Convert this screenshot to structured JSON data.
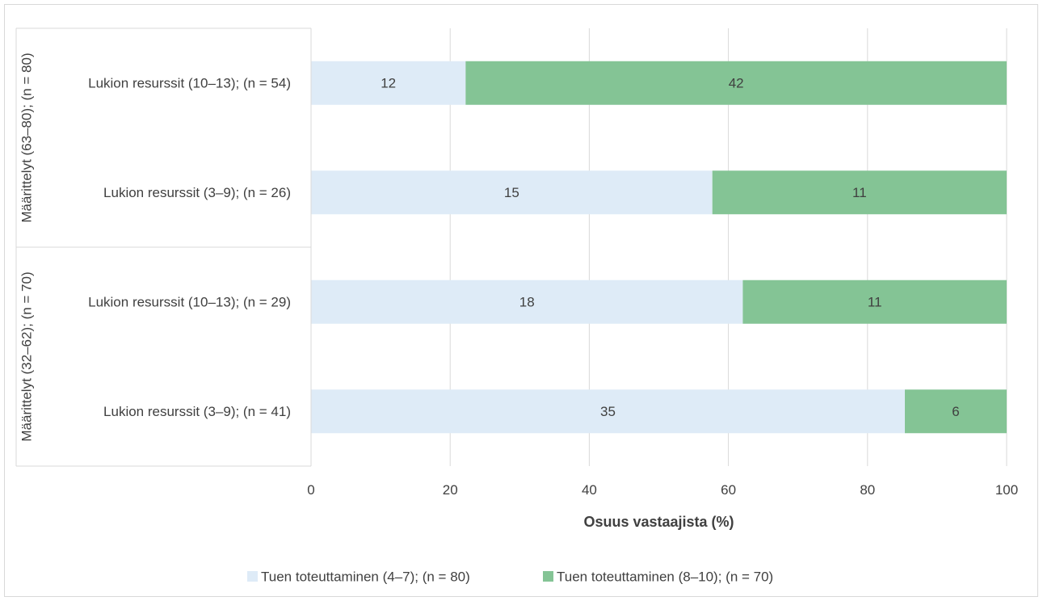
{
  "chart_data": {
    "type": "bar",
    "orientation": "horizontal",
    "stacked": "percent",
    "groups": [
      {
        "label": "Määrittelyt (63–80); (n = 80)",
        "categories": [
          0,
          1
        ]
      },
      {
        "label": "Määrittelyt (32–62); (n = 70)",
        "categories": [
          2,
          3
        ]
      }
    ],
    "categories": [
      "Lukion resurssit (10–13); (n = 54)",
      "Lukion resurssit (3–9); (n = 26)",
      "Lukion resurssit (10–13); (n = 29)",
      "Lukion resurssit (3–9); (n = 41)"
    ],
    "series": [
      {
        "name": "Tuen toteuttaminen (4–7); (n = 80)",
        "color": "#deebf7",
        "values": [
          12,
          15,
          18,
          35
        ]
      },
      {
        "name": "Tuen toteuttaminen (8–10); (n = 70)",
        "color": "#84c495",
        "values": [
          42,
          11,
          11,
          6
        ]
      }
    ],
    "xlabel": "Osuus vastaajista (%)",
    "xlim": [
      0,
      100
    ],
    "xticks": [
      0,
      20,
      40,
      60,
      80,
      100
    ],
    "grid": true,
    "legend": "bottom"
  }
}
